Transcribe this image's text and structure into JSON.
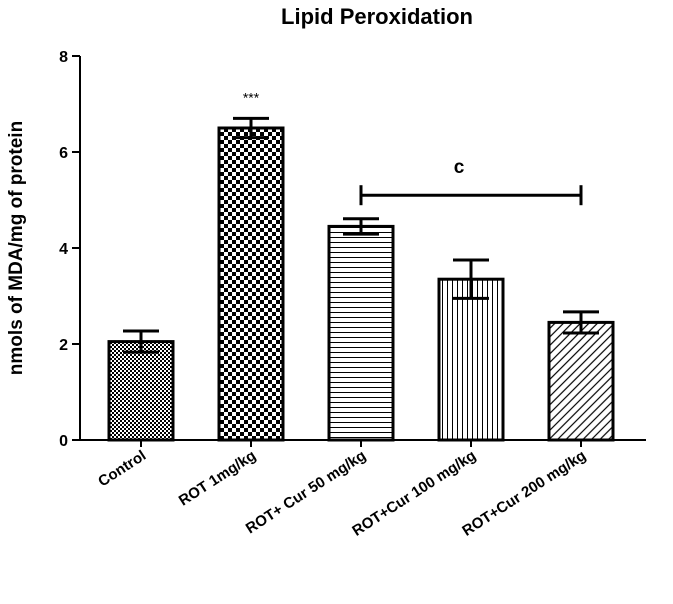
{
  "chart_data": {
    "type": "bar",
    "title": "Lipid Peroxidation",
    "xlabel": "",
    "ylabel": "nmols of MDA/mg of protein",
    "ylim": [
      0,
      8
    ],
    "yticks": [
      0,
      2,
      4,
      6,
      8
    ],
    "categories": [
      "Control",
      "ROT 1mg/kg",
      "ROT+ Cur 50 mg/kg",
      "ROT+Cur 100 mg/kg",
      "ROT+Cur 200 mg/kg"
    ],
    "values": [
      2.05,
      6.5,
      4.45,
      3.35,
      2.45
    ],
    "errors": [
      0.22,
      0.2,
      0.16,
      0.4,
      0.22
    ],
    "patterns": [
      "fine-checker",
      "checker",
      "horizontal-lines",
      "vertical-lines",
      "diagonal-lines"
    ],
    "annotations": [
      {
        "text": "***",
        "category": "ROT 1mg/kg"
      },
      {
        "text": "c",
        "type": "bracket",
        "from": "ROT+ Cur 50 mg/kg",
        "to": "ROT+Cur 200 mg/kg",
        "y": 5.1
      }
    ],
    "grid": false,
    "legend": "none",
    "colors": {
      "bar_stroke": "#000000",
      "pattern": "#000000",
      "background": "#ffffff"
    }
  }
}
